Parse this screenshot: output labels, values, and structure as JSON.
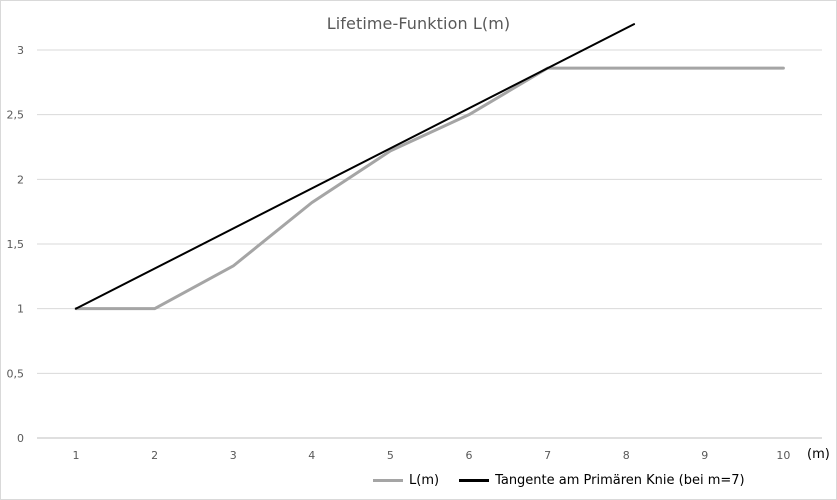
{
  "chart_data": {
    "type": "line",
    "title": "Lifetime-Funktion L(m)",
    "xlabel": "(m)",
    "ylabel": "",
    "x": [
      1,
      2,
      3,
      4,
      5,
      6,
      7,
      8,
      9,
      10
    ],
    "xlim": [
      1,
      10
    ],
    "ylim": [
      0,
      3
    ],
    "yticks": [
      0,
      0.5,
      1,
      1.5,
      2,
      2.5,
      3
    ],
    "ytick_labels": [
      "0",
      "0,5",
      "1",
      "1,5",
      "2",
      "2,5",
      "3"
    ],
    "xtick_labels": [
      "1",
      "2",
      "3",
      "4",
      "5",
      "6",
      "7",
      "8",
      "9",
      "10"
    ],
    "grid": "horizontal",
    "legend_position": "bottom",
    "series": [
      {
        "name": "L(m)",
        "color": "#a5a5a5",
        "x": [
          1,
          2,
          3,
          4,
          5,
          6,
          7,
          8,
          9,
          10
        ],
        "values": [
          1.0,
          1.0,
          1.33,
          1.82,
          2.22,
          2.5,
          2.86,
          2.86,
          2.86,
          2.86
        ]
      },
      {
        "name": "Tangente am Primären Knie (bei m=7)",
        "color": "#000000",
        "x": [
          1,
          8.1
        ],
        "values": [
          1.0,
          3.2
        ]
      }
    ]
  }
}
